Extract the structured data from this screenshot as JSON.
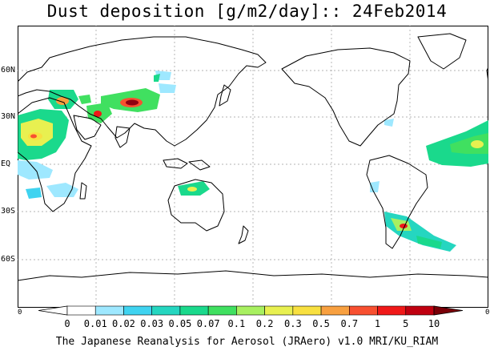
{
  "title": "Dust deposition [g/m2/day]:: 24Feb2014",
  "footer": "The Japanese Reanalysis for Aerosol (JRAero) v1.0 MRI/KU_RIAM",
  "lat_labels": [
    "60N",
    "30N",
    "EQ",
    "30S",
    "60S"
  ],
  "edge_labels": {
    "left": "0",
    "right": "0"
  },
  "colorbar": {
    "labels": [
      "0",
      "0.01",
      "0.02",
      "0.03",
      "0.05",
      "0.07",
      "0.1",
      "0.2",
      "0.3",
      "0.5",
      "0.7",
      "1",
      "5",
      "10"
    ],
    "colors": [
      "#ffffff",
      "#9ee8ff",
      "#3fd3f0",
      "#25d6c0",
      "#1ad98c",
      "#40e060",
      "#a8f060",
      "#e8f050",
      "#f8e040",
      "#f8a040",
      "#f85030",
      "#f01818",
      "#c00010",
      "#900010"
    ],
    "left_arrow_color": "#ffffff",
    "right_arrow_color": "#7a0008"
  }
}
